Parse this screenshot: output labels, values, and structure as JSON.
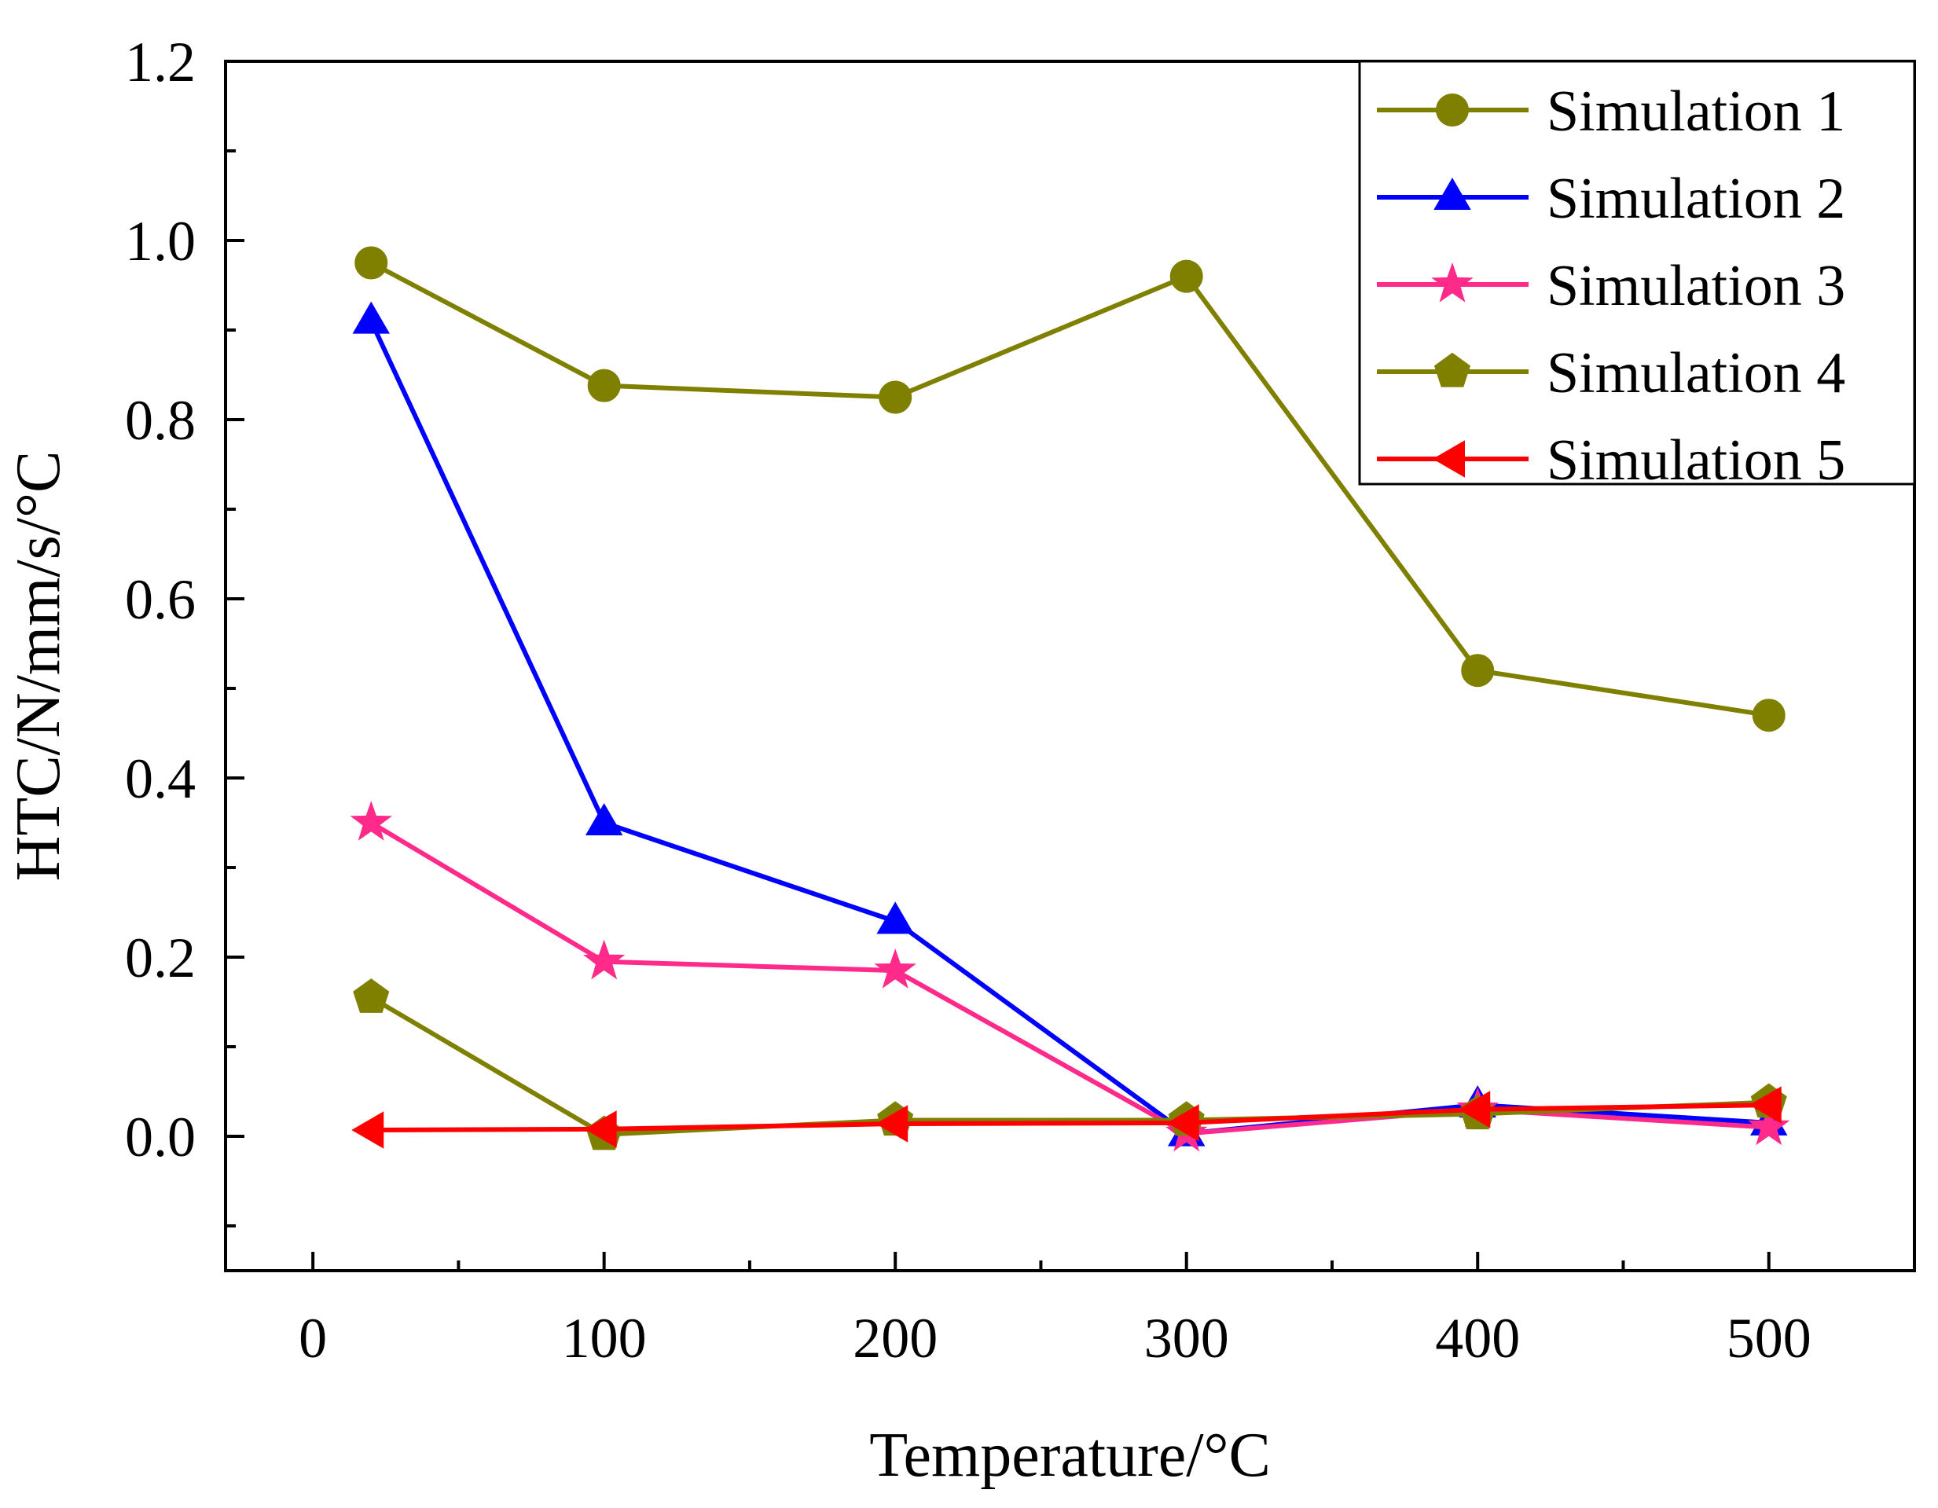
{
  "chart_data": {
    "type": "line",
    "xlabel": "Temperature/°C",
    "ylabel": "HTC/N/mm/s/°C",
    "xlim": [
      -30,
      550
    ],
    "ylim": [
      -0.15,
      1.2
    ],
    "x_ticks": [
      0,
      100,
      200,
      300,
      400,
      500
    ],
    "x_tick_labels": [
      "0",
      "100",
      "200",
      "300",
      "400",
      "500"
    ],
    "x_minor_ticks": [
      50,
      150,
      250,
      350,
      450
    ],
    "y_ticks": [
      0.0,
      0.2,
      0.4,
      0.6,
      0.8,
      1.0,
      1.2
    ],
    "y_tick_labels": [
      "0.0",
      "0.2",
      "0.4",
      "0.6",
      "0.8",
      "1.0",
      "1.2"
    ],
    "y_minor_ticks": [
      -0.1,
      0.1,
      0.3,
      0.5,
      0.7,
      0.9,
      1.1
    ],
    "grid": false,
    "legend_position": "top-right",
    "x": [
      20,
      100,
      200,
      300,
      400,
      500
    ],
    "series": [
      {
        "name": "Simulation 1",
        "color": "#808000",
        "marker": "circle",
        "values": [
          0.975,
          0.838,
          0.825,
          0.96,
          0.52,
          0.47
        ]
      },
      {
        "name": "Simulation 2",
        "color": "#0000ff",
        "marker": "triangle-up",
        "values": [
          0.91,
          0.35,
          0.24,
          0.003,
          0.035,
          0.015
        ]
      },
      {
        "name": "Simulation 3",
        "color": "#ff2a8a",
        "marker": "star",
        "values": [
          0.35,
          0.195,
          0.185,
          0.003,
          0.03,
          0.01
        ]
      },
      {
        "name": "Simulation 4",
        "color": "#808000",
        "marker": "pentagon",
        "values": [
          0.155,
          0.002,
          0.018,
          0.018,
          0.025,
          0.038
        ]
      },
      {
        "name": "Simulation 5",
        "color": "#ff0000",
        "marker": "triangle-left",
        "values": [
          0.007,
          0.008,
          0.014,
          0.015,
          0.03,
          0.035
        ]
      }
    ]
  }
}
